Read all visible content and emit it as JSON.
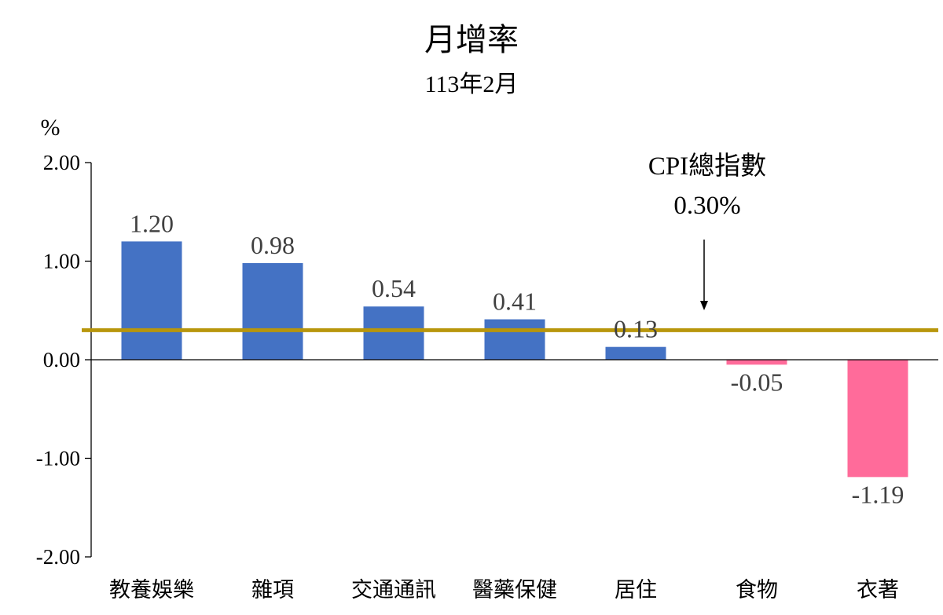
{
  "chart_data": {
    "type": "bar",
    "title": "月增率",
    "subtitle": "113年2月",
    "ylabel": "%",
    "ylim": [
      -2,
      2
    ],
    "yticks": [
      2,
      1,
      0,
      -1,
      -2
    ],
    "ytick_labels": [
      "2.00",
      "1.00",
      "0.00",
      "-1.00",
      "-2.00"
    ],
    "categories": [
      "教養娛樂",
      "雜項",
      "交通通訊",
      "醫藥保健",
      "居住",
      "食物",
      "衣著"
    ],
    "values": [
      1.2,
      0.98,
      0.54,
      0.41,
      0.13,
      -0.05,
      -1.19
    ],
    "value_labels": [
      "1.20",
      "0.98",
      "0.54",
      "0.41",
      "0.13",
      "-0.05",
      "-1.19"
    ],
    "positive_color": "#4472C4",
    "negative_color": "#FF6B9A",
    "reference_line": {
      "value": 0.3,
      "color": "#B8960C",
      "label_line1": "CPI總指數",
      "label_line2": "0.30%"
    },
    "grid": false,
    "legend": "none"
  }
}
